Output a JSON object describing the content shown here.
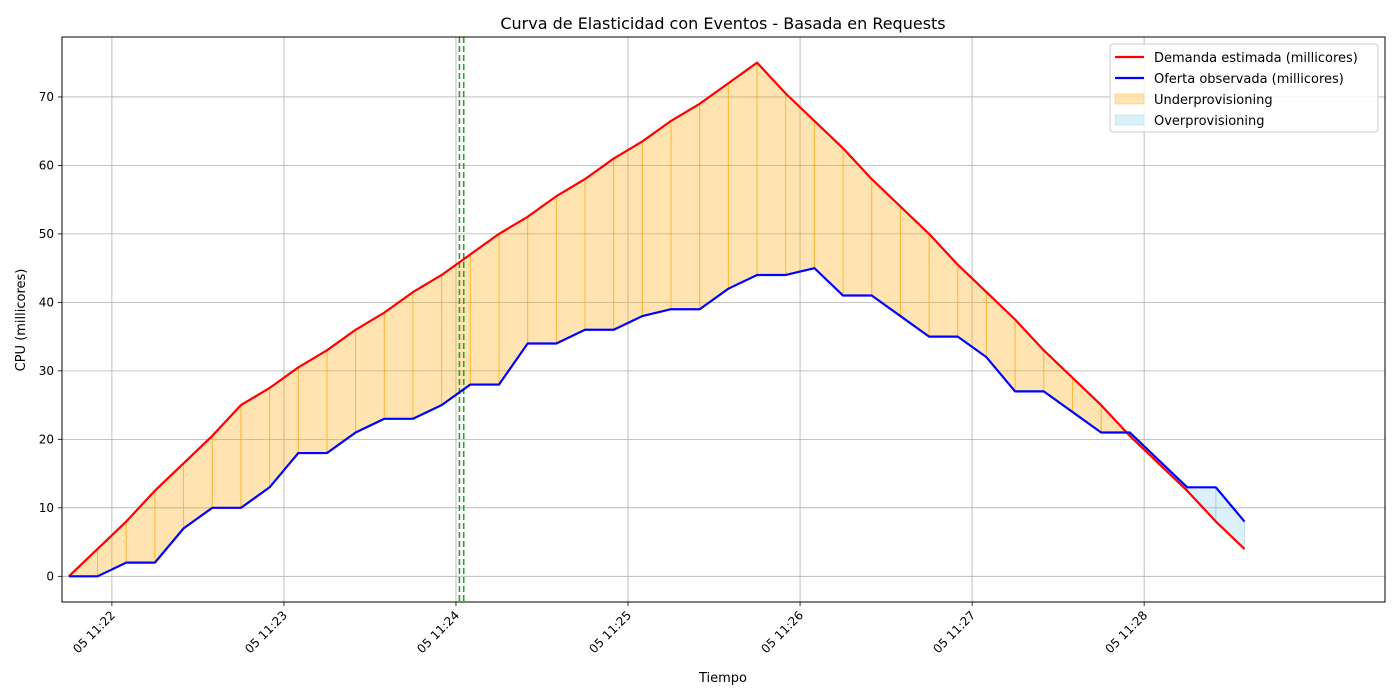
{
  "chart_data": {
    "type": "line",
    "title": "Curva de Elasticidad con Eventos - Basada en Requests",
    "xlabel": "Tiempo",
    "ylabel": "CPU (millicores)",
    "xlim": [
      -0.29,
      7.4
    ],
    "ylim": [
      -3.75,
      78.75
    ],
    "y_ticks": [
      0,
      10,
      20,
      30,
      40,
      50,
      60,
      70
    ],
    "x_ticks": [
      {
        "value": 0,
        "label": "05 11:22"
      },
      {
        "value": 1,
        "label": "05 11:23"
      },
      {
        "value": 2,
        "label": "05 11:24"
      },
      {
        "value": 3,
        "label": "05 11:25"
      },
      {
        "value": 4,
        "label": "05 11:26"
      },
      {
        "value": 5,
        "label": "05 11:27"
      },
      {
        "value": 6,
        "label": "05 11:28"
      }
    ],
    "x_unit": "minutes after 11:22",
    "grid": true,
    "legend_position": "top-right",
    "x": [
      -0.25,
      -0.0833,
      0.0833,
      0.25,
      0.4167,
      0.5833,
      0.75,
      0.9167,
      1.0833,
      1.25,
      1.4167,
      1.5833,
      1.75,
      1.9167,
      2.0833,
      2.25,
      2.4167,
      2.5833,
      2.75,
      2.9167,
      3.0833,
      3.25,
      3.4167,
      3.5833,
      3.75,
      3.9167,
      4.0833,
      4.25,
      4.4167,
      4.5833,
      4.75,
      4.9167,
      5.0833,
      5.25,
      5.4167,
      5.5833,
      5.75,
      5.9167,
      6.0833,
      6.25,
      6.4167,
      6.5833
    ],
    "series": [
      {
        "name": "Demanda estimada (millicores)",
        "color": "#ff0000",
        "values": [
          0,
          4,
          8,
          12.5,
          16.5,
          20.5,
          25,
          27.5,
          30.5,
          33,
          36,
          38.5,
          41.5,
          44,
          47,
          50,
          52.5,
          55.5,
          58,
          61,
          63.5,
          66.5,
          69,
          72,
          75,
          70.5,
          66.5,
          62.5,
          58,
          54,
          50,
          45.5,
          41.5,
          37.5,
          33,
          29,
          25,
          20.5,
          16.5,
          12.5,
          8,
          4
        ]
      },
      {
        "name": "Oferta observada (millicores)",
        "color": "#0000ff",
        "values": [
          0,
          0,
          2,
          2,
          7,
          10,
          10,
          13,
          18,
          18,
          21,
          23,
          23,
          25,
          28,
          28,
          34,
          34,
          36,
          36,
          38,
          39,
          39,
          42,
          44,
          44,
          45,
          41,
          41,
          38,
          35,
          35,
          32,
          27,
          27,
          24,
          21,
          21,
          17,
          13,
          13,
          8
        ]
      }
    ],
    "fills": [
      {
        "name": "Underprovisioning",
        "color": "#ffa500",
        "alpha": 0.3,
        "where": "demand > supply"
      },
      {
        "name": "Overprovisioning",
        "color": "#87ceeb",
        "alpha": 0.3,
        "where": "supply > demand"
      }
    ],
    "event_lines": [
      {
        "x": 2.02,
        "color": "#2ca02c",
        "style": "dashed"
      },
      {
        "x": 2.045,
        "color": "#2ca02c",
        "style": "dashed"
      }
    ]
  }
}
